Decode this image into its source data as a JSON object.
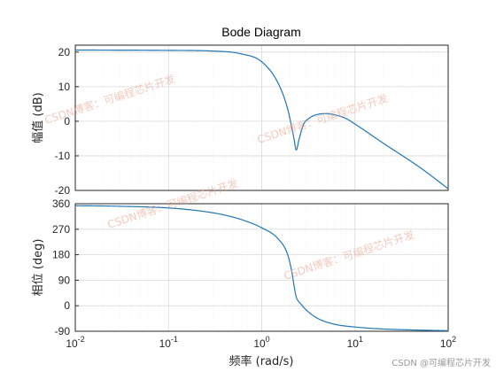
{
  "chart_data": {
    "type": "line",
    "title": "Bode Diagram",
    "xlabel": "频率  (rad/s)",
    "xscale": "log",
    "xlim": [
      0.01,
      100
    ],
    "x_tick_labels": [
      "10^-2",
      "10^-1",
      "10^0",
      "10^1",
      "10^2"
    ],
    "grid": true,
    "colors": {
      "line": "#1f77b4",
      "axes": "#262626",
      "grid": "#d9d9d9",
      "minor_grid": "#ececec"
    },
    "panels": [
      {
        "name": "magnitude",
        "ylabel": "幅值 (dB)",
        "ylim": [
          -20,
          22
        ],
        "y_ticks": [
          20,
          10,
          0,
          -10,
          -20
        ],
        "x": [
          0.01,
          0.1,
          0.3,
          0.6,
          1.0,
          1.5,
          1.9,
          2.2,
          2.35,
          2.5,
          2.8,
          3.2,
          4.0,
          5.0,
          6.0,
          8.0,
          10,
          20,
          50,
          100
        ],
        "y": [
          20.6,
          20.5,
          20.3,
          19.5,
          17.2,
          11.0,
          3.5,
          -4.5,
          -8.3,
          -5.5,
          -1.0,
          0.8,
          2.0,
          2.2,
          1.9,
          0.8,
          -0.8,
          -6.3,
          -13.4,
          -19.5
        ]
      },
      {
        "name": "phase",
        "ylabel": "相位 (deg)",
        "ylim": [
          -90,
          360
        ],
        "y_ticks": [
          360,
          270,
          180,
          90,
          0,
          -90
        ],
        "x": [
          0.01,
          0.03,
          0.1,
          0.2,
          0.4,
          0.7,
          1.0,
          1.5,
          1.9,
          2.1,
          2.25,
          2.35,
          2.45,
          2.6,
          3.0,
          4.0,
          6.0,
          10,
          20,
          50,
          100
        ],
        "y": [
          353,
          351,
          345,
          336,
          320,
          297,
          275,
          236,
          180,
          120,
          60,
          30,
          18,
          8,
          -15,
          -45,
          -65,
          -75,
          -82,
          -86,
          -88
        ]
      }
    ]
  },
  "watermarks": [
    "CSDN博客：可编程芯片开发",
    "CSDN博客：可编程芯片开发",
    "CSDN博客：可编程芯片开发",
    "CSDN博客：可编程芯片开发"
  ],
  "credit": "CSDN @可编程芯片开发"
}
